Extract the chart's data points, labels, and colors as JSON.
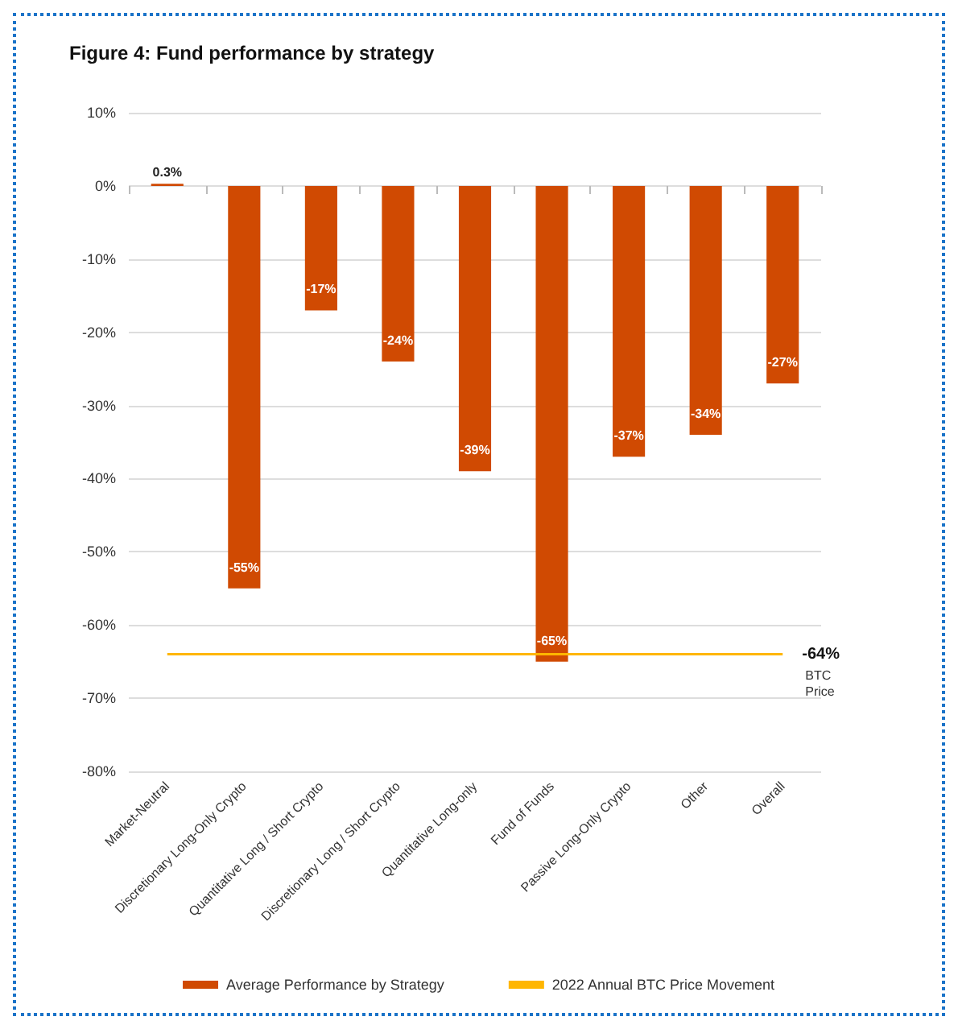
{
  "chart_data": {
    "type": "bar",
    "title": "Figure 4: Fund performance by strategy",
    "categories": [
      "Market-Neutral",
      "Discretionary Long-Only Crypto",
      "Quantitative Long / Short Crypto",
      "Discretionary Long / Short Crypto",
      "Quantitative Long-only",
      "Fund of Funds",
      "Passive Long-Only Crypto",
      "Other",
      "Overall"
    ],
    "series": [
      {
        "name": "Average Performance by Strategy",
        "color": "#d04a02",
        "values": [
          0.3,
          -55,
          -17,
          -24,
          -39,
          -65,
          -37,
          -34,
          -27
        ],
        "value_labels": [
          "0.3%",
          "-55%",
          "-17%",
          "-24%",
          "-39%",
          "-65%",
          "-37%",
          "-34%",
          "-27%"
        ]
      },
      {
        "name": "2022 Annual BTC Price Movement",
        "type": "line",
        "color": "#ffb600",
        "values": [
          -64,
          -64,
          -64,
          -64,
          -64,
          -64,
          -64,
          -64,
          -64
        ],
        "value_labels": [
          null,
          null,
          null,
          null,
          null,
          null,
          null,
          null,
          "-64%"
        ]
      }
    ],
    "annotations": [
      {
        "text": "BTC Price",
        "x": "Overall",
        "y": -64
      }
    ],
    "ylim": [
      -80,
      10
    ],
    "yticks": [
      {
        "value": 10,
        "label": "10%"
      },
      {
        "value": 0,
        "label": "0%"
      },
      {
        "value": -10,
        "label": "-10%"
      },
      {
        "value": -20,
        "label": "-20%"
      },
      {
        "value": -30,
        "label": "-30%"
      },
      {
        "value": -40,
        "label": "-40%"
      },
      {
        "value": -50,
        "label": "-50%"
      },
      {
        "value": -60,
        "label": "-60%"
      },
      {
        "value": -70,
        "label": "-70%"
      },
      {
        "value": -80,
        "label": "-80%"
      }
    ],
    "grid": "y",
    "legend": "bottom",
    "marker": "none"
  }
}
